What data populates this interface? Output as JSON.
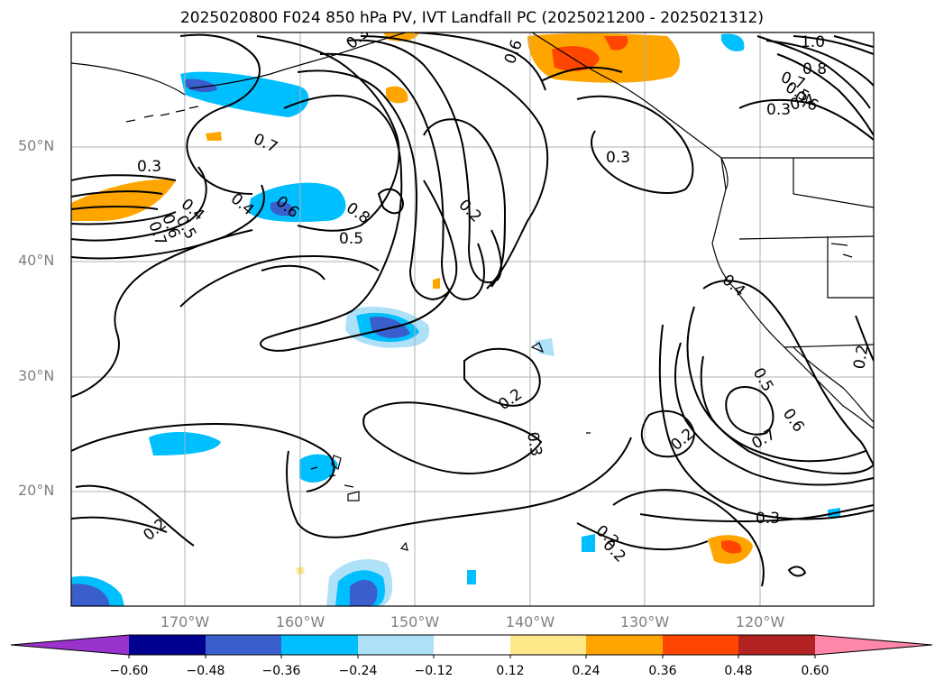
{
  "title": "2025020800 F024 850 hPa PV, IVT Landfall PC (2025021200 - 2025021312)",
  "lat_labels": [
    "50°N",
    "40°N",
    "30°N",
    "20°N"
  ],
  "lon_labels": [
    "170°W",
    "160°W",
    "150°W",
    "140°W",
    "130°W",
    "120°W"
  ],
  "colorbar": {
    "ticks": [
      "−0.60",
      "−0.48",
      "−0.36",
      "−0.24",
      "−0.12",
      "0.12",
      "0.24",
      "0.36",
      "0.48",
      "0.60"
    ],
    "colors": [
      "#9933cc",
      "#000090",
      "#3a5fcd",
      "#00bfff",
      "#aee1f7",
      "#ffffff",
      "#ffe88a",
      "#ffa500",
      "#ff4500",
      "#b22222",
      "#ff88aa"
    ]
  },
  "contour_labels": [
    "0.3",
    "0.4",
    "0.5",
    "0.6",
    "0.7",
    "0.4",
    "0.6",
    "0.7",
    "0.8",
    "0.5",
    "0.3",
    "0.6",
    "0.2",
    "0.3",
    "0.2",
    "0.3",
    "0.2",
    "0.2",
    "0.4",
    "0.5",
    "0.6",
    "0.7",
    "0.2",
    "0.3",
    "1.0",
    "0.8",
    "0.7",
    "0.5",
    "0.6",
    "0.4",
    "0.3",
    "0.2",
    "0.2"
  ]
}
